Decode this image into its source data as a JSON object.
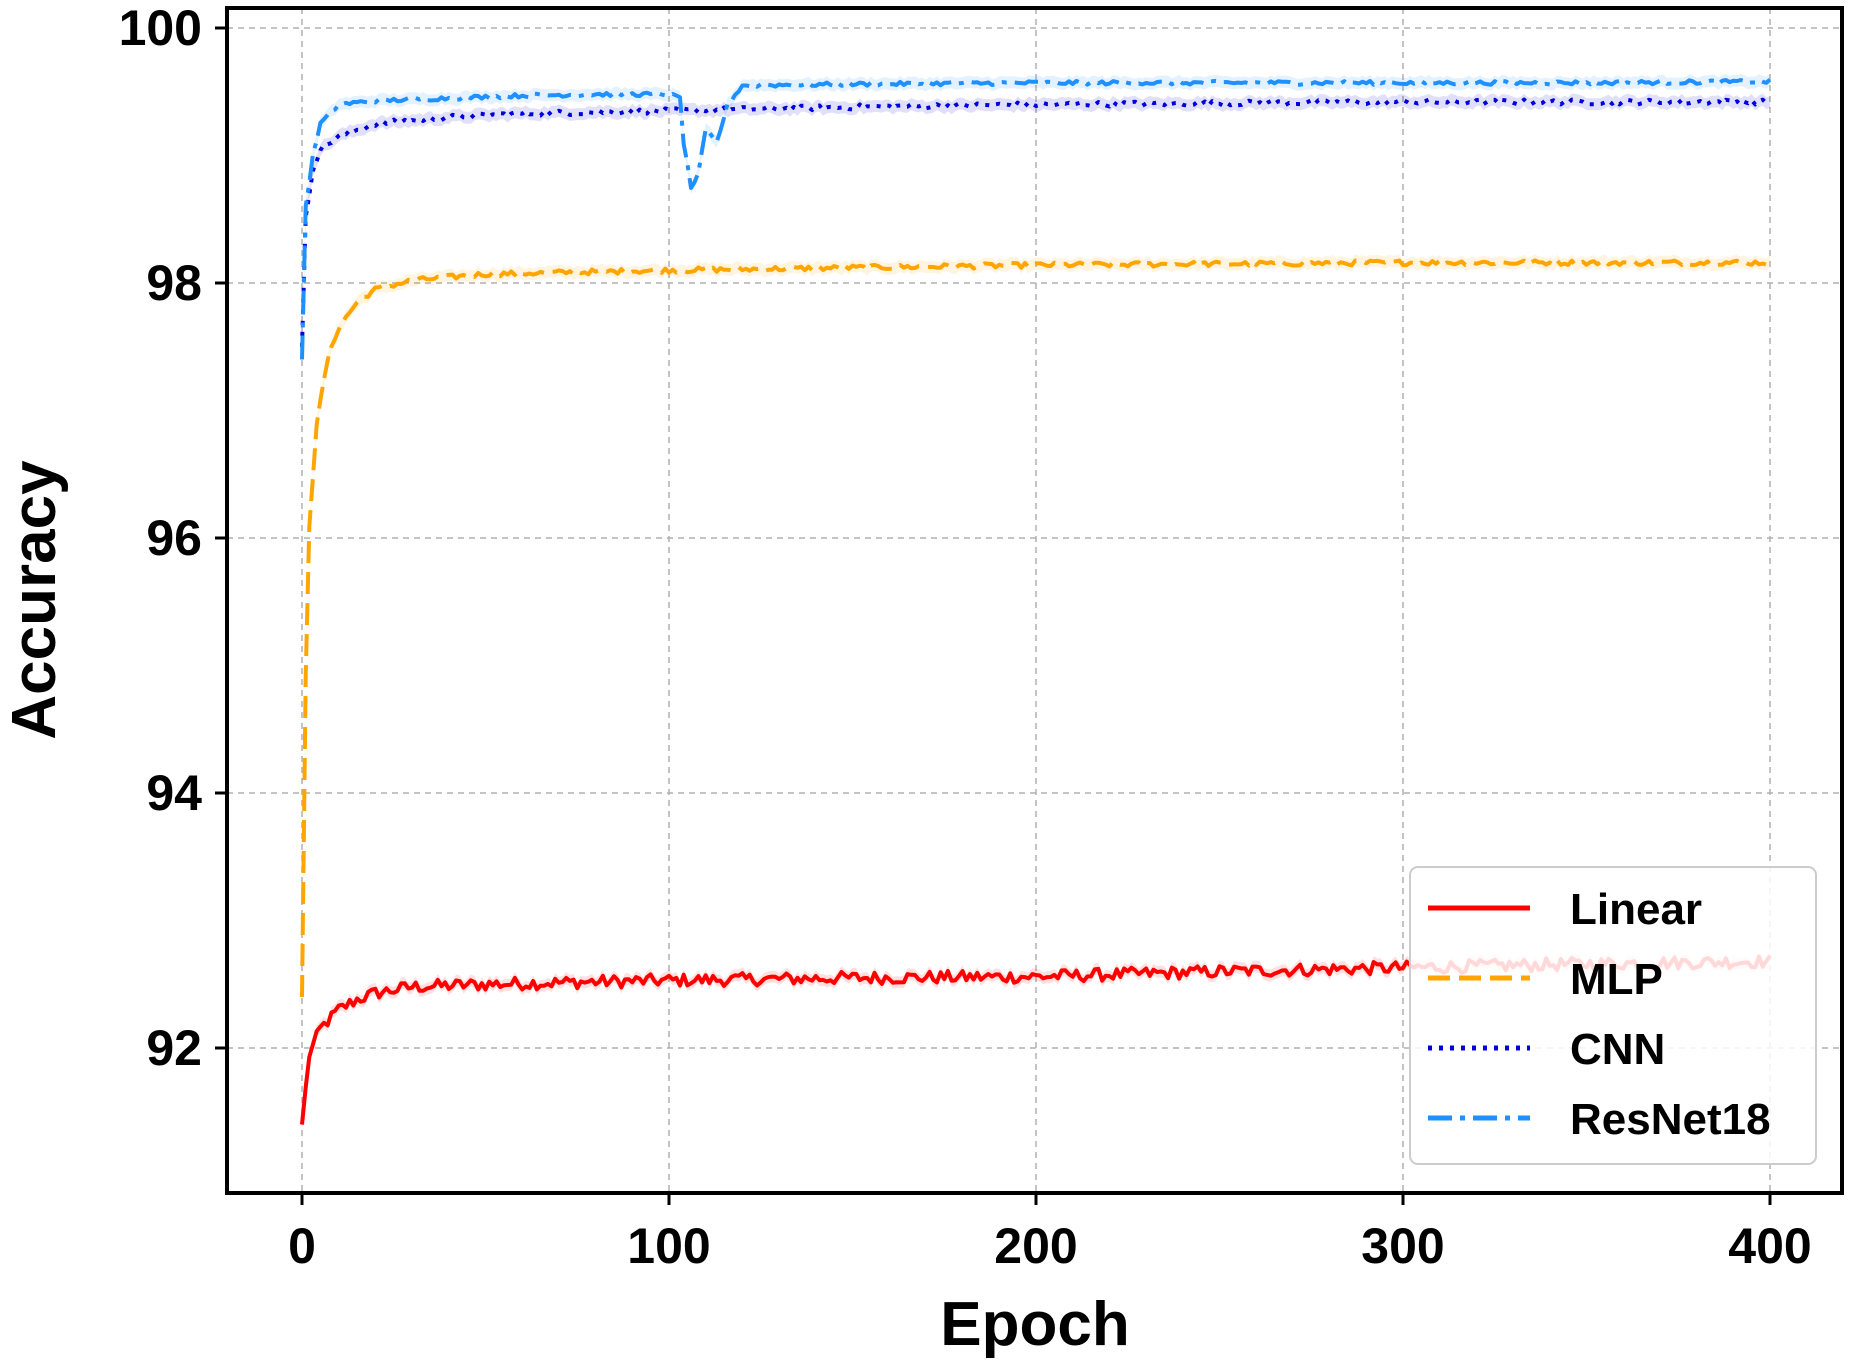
{
  "chart_data": {
    "type": "line",
    "xlabel": "Epoch",
    "ylabel": "Accuracy",
    "xlim": [
      -20,
      420
    ],
    "ylim": [
      90.8,
      100.2
    ],
    "xticks": [
      0,
      100,
      200,
      300,
      400
    ],
    "yticks": [
      92,
      94,
      96,
      98,
      100
    ],
    "grid": true,
    "legend_position": "lower-right",
    "series": [
      {
        "name": "Linear",
        "color": "#ff0000",
        "dash": "solid",
        "noise": 0.05,
        "x": [
          0,
          2,
          5,
          10,
          15,
          20,
          30,
          50,
          80,
          100,
          150,
          200,
          250,
          300,
          350,
          400
        ],
        "values": [
          91.4,
          91.95,
          92.15,
          92.3,
          92.38,
          92.43,
          92.48,
          92.5,
          92.52,
          92.53,
          92.55,
          92.56,
          92.6,
          92.63,
          92.66,
          92.68
        ]
      },
      {
        "name": "MLP",
        "color": "#ffa500",
        "dash": "dashed",
        "noise": 0.02,
        "x": [
          0,
          1,
          2,
          4,
          7,
          10,
          15,
          20,
          30,
          50,
          100,
          150,
          200,
          250,
          300,
          350,
          400
        ],
        "values": [
          92.4,
          94.9,
          96.1,
          96.9,
          97.4,
          97.65,
          97.85,
          97.95,
          98.02,
          98.07,
          98.1,
          98.12,
          98.14,
          98.15,
          98.16,
          98.16,
          98.16
        ]
      },
      {
        "name": "CNN",
        "color": "#0000dd",
        "dash": "dotted",
        "noise": 0.02,
        "x": [
          0,
          1,
          3,
          5,
          10,
          20,
          40,
          60,
          100,
          150,
          200,
          250,
          300,
          350,
          400
        ],
        "values": [
          97.5,
          98.5,
          98.9,
          99.05,
          99.15,
          99.25,
          99.3,
          99.33,
          99.35,
          99.38,
          99.4,
          99.41,
          99.42,
          99.42,
          99.42
        ]
      },
      {
        "name": "ResNet18",
        "color": "#1e90ff",
        "dash": "dashdot",
        "noise": 0.015,
        "x": [
          0,
          1,
          3,
          5,
          10,
          20,
          40,
          60,
          80,
          100,
          103,
          104,
          106,
          108,
          110,
          113,
          116,
          120,
          150,
          200,
          250,
          300,
          350,
          400
        ],
        "values": [
          97.4,
          98.6,
          99.0,
          99.25,
          99.4,
          99.43,
          99.45,
          99.47,
          99.48,
          99.48,
          99.45,
          99.1,
          98.75,
          98.85,
          99.2,
          99.1,
          99.4,
          99.55,
          99.56,
          99.57,
          99.57,
          99.57,
          99.57,
          99.58
        ]
      }
    ]
  }
}
